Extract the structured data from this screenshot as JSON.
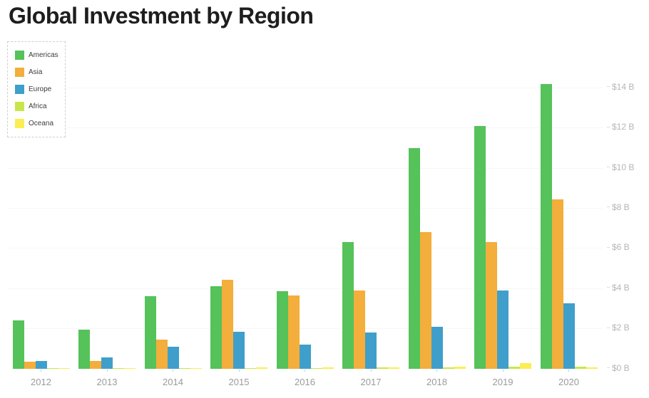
{
  "title": "Global Investment by Region",
  "chart_data": {
    "type": "bar",
    "title": "Global Investment by Region",
    "xlabel": "",
    "ylabel": "",
    "categories": [
      "2012",
      "2013",
      "2014",
      "2015",
      "2016",
      "2017",
      "2018",
      "2019",
      "2020"
    ],
    "series": [
      {
        "name": "Americas",
        "color": "#55c25a",
        "values": [
          2.4,
          1.95,
          3.6,
          4.1,
          3.85,
          6.3,
          11.0,
          12.1,
          14.2
        ]
      },
      {
        "name": "Asia",
        "color": "#f3ae3b",
        "values": [
          0.35,
          0.4,
          1.45,
          4.45,
          3.65,
          3.9,
          6.8,
          6.3,
          8.45
        ]
      },
      {
        "name": "Europe",
        "color": "#3f9fca",
        "values": [
          0.4,
          0.55,
          1.1,
          1.85,
          1.2,
          1.8,
          2.1,
          3.9,
          3.25
        ]
      },
      {
        "name": "Africa",
        "color": "#c8e64c",
        "values": [
          0.02,
          0.04,
          0.03,
          0.04,
          0.04,
          0.06,
          0.07,
          0.12,
          0.1
        ]
      },
      {
        "name": "Oceana",
        "color": "#fbee51",
        "values": [
          0.02,
          0.02,
          0.03,
          0.06,
          0.06,
          0.08,
          0.12,
          0.3,
          0.08
        ]
      }
    ],
    "y_ticks": [
      {
        "label": "$0 B",
        "value": 0
      },
      {
        "label": "$2 B",
        "value": 2
      },
      {
        "label": "$4 B",
        "value": 4
      },
      {
        "label": "$6 B",
        "value": 6
      },
      {
        "label": "$8 B",
        "value": 8
      },
      {
        "label": "$10 B",
        "value": 10
      },
      {
        "label": "$12 B",
        "value": 12
      },
      {
        "label": "$14 B",
        "value": 14
      }
    ],
    "ylim": [
      0,
      14.8
    ],
    "grid": "faint-horizontal",
    "legend_position": "top-left",
    "y_axis_side": "right"
  },
  "colors": {
    "title_text": "#1e1e1e",
    "axis_label_text": "#9b9b9b",
    "y_label_text": "#b5b5b5",
    "legend_text": "#3c3c3c",
    "legend_border": "#cfcfcf",
    "background": "#ffffff"
  }
}
